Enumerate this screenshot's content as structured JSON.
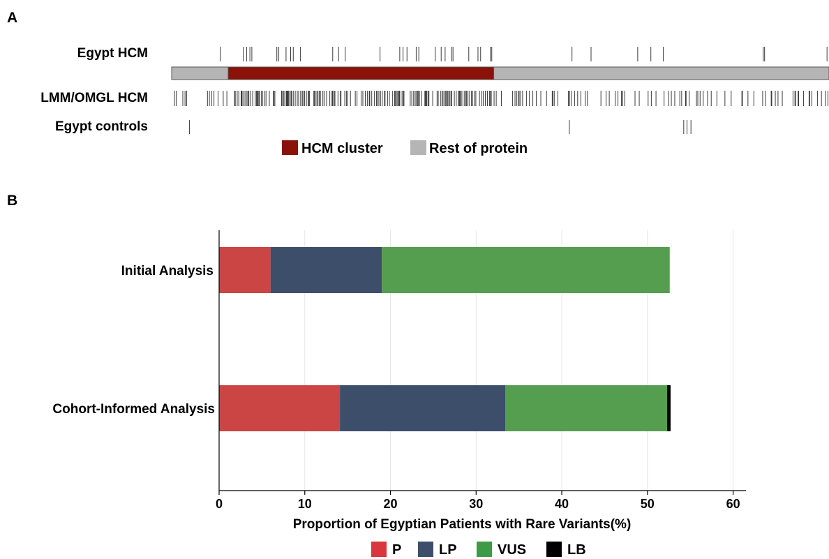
{
  "panel_a": {
    "letter": "A",
    "protein_length": 1000,
    "cluster_range": [
      86,
      490
    ],
    "colors": {
      "cluster": "#8a1209",
      "rest": "#b5b5b5",
      "tick": "#3a3a3a"
    },
    "tracks": [
      {
        "label": "Egypt HCM",
        "positions": [
          74,
          109,
          114,
          119,
          122,
          160,
          163,
          174,
          181,
          185,
          196,
          245,
          254,
          264,
          317,
          347,
          352,
          358,
          372,
          376,
          401,
          410,
          416,
          426,
          428,
          452,
          466,
          470,
          485,
          487,
          609,
          638,
          709,
          729,
          748,
          900,
          902,
          997
        ]
      },
      {
        "label": "LMM/OMGL HCM",
        "positions": []
      },
      {
        "label": "Egypt controls",
        "positions": [
          27,
          605,
          779,
          784,
          790
        ]
      }
    ],
    "legend": [
      {
        "label": "HCM cluster",
        "color": "#8a1209"
      },
      {
        "label": "Rest of protein",
        "color": "#b5b5b5"
      }
    ]
  },
  "panel_b": {
    "letter": "B"
  },
  "chart_data": {
    "type": "bar",
    "orientation": "horizontal",
    "stacked": true,
    "categories": [
      "Initial Analysis",
      "Cohort-Informed Analysis"
    ],
    "series": [
      {
        "name": "P",
        "color": "#cb4545",
        "values": [
          6.0,
          14.1
        ]
      },
      {
        "name": "LP",
        "color": "#3c4e6a",
        "values": [
          13.0,
          19.3
        ]
      },
      {
        "name": "VUS",
        "color": "#559d4f",
        "values": [
          33.6,
          18.9
        ]
      },
      {
        "name": "LB",
        "color": "#000000",
        "values": [
          0,
          0.4
        ]
      }
    ],
    "xlabel": "Proportion of Egyptian Patients with Rare Variants(%)",
    "xlim": [
      0,
      61.5
    ],
    "xticks": [
      0,
      10,
      20,
      30,
      40,
      50,
      60
    ],
    "grid": "vertical",
    "legend_position": "bottom",
    "legend_colors": {
      "P": "#d9363e",
      "LP": "#3c4e6a",
      "VUS": "#3d9b47",
      "LB": "#000000"
    }
  }
}
